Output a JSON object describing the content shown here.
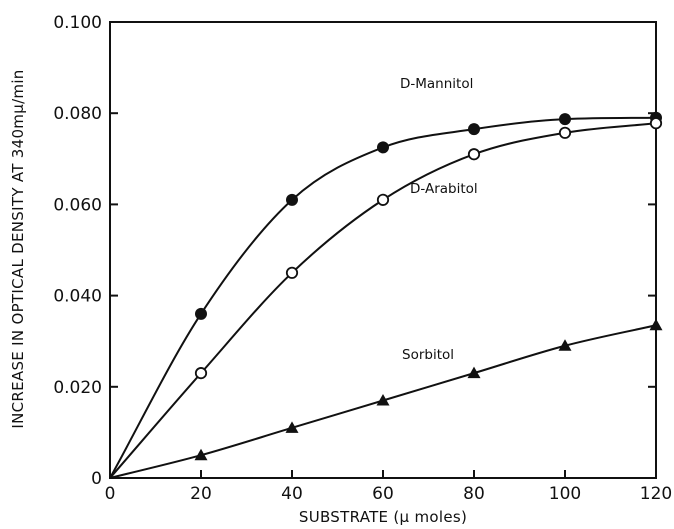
{
  "chart_data": {
    "type": "line",
    "xlabel": "SUBSTRATE (µ moles)",
    "ylabel": "INCREASE IN OPTICAL DENSITY AT 340mµ/min",
    "xlim": [
      0,
      120
    ],
    "ylim": [
      0,
      0.1
    ],
    "x_ticks": [
      0,
      20,
      40,
      60,
      80,
      100,
      120
    ],
    "x_tick_labels": [
      "0",
      "20",
      "40",
      "60",
      "80",
      "100",
      "120"
    ],
    "y_ticks": [
      0,
      0.02,
      0.04,
      0.06,
      0.08,
      0.1
    ],
    "y_tick_labels": [
      "0",
      "0.020",
      "0.040",
      "0.060",
      "0.080",
      "0.100"
    ],
    "grid": false,
    "legend": "inline labels next to curves",
    "series": [
      {
        "name": "D-Mannitol",
        "marker": "filled-circle",
        "x": [
          0,
          20,
          40,
          60,
          80,
          100,
          120
        ],
        "y": [
          0,
          0.036,
          0.061,
          0.0725,
          0.0765,
          0.0787,
          0.079
        ]
      },
      {
        "name": "D-Arabitol",
        "marker": "open-circle",
        "x": [
          0,
          20,
          40,
          60,
          80,
          100,
          120
        ],
        "y": [
          0,
          0.023,
          0.045,
          0.061,
          0.071,
          0.0757,
          0.0778
        ]
      },
      {
        "name": "Sorbitol",
        "marker": "filled-triangle",
        "x": [
          0,
          20,
          40,
          60,
          80,
          100,
          120
        ],
        "y": [
          0,
          0.005,
          0.011,
          0.017,
          0.023,
          0.029,
          0.0335
        ]
      }
    ]
  }
}
